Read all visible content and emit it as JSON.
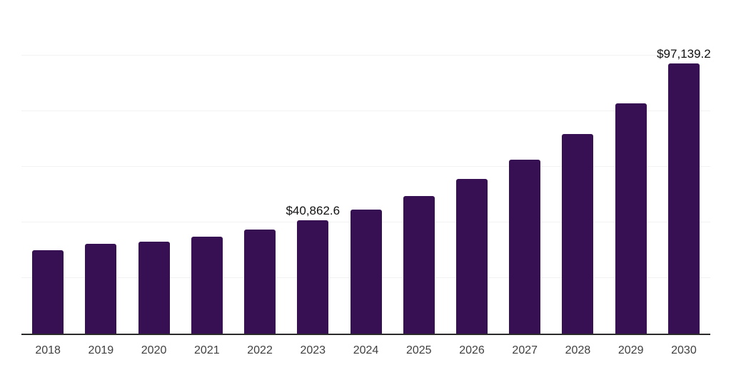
{
  "chart_data": {
    "type": "bar",
    "title": "",
    "xlabel": "",
    "ylabel": "",
    "categories": [
      "2018",
      "2019",
      "2020",
      "2021",
      "2022",
      "2023",
      "2024",
      "2025",
      "2026",
      "2027",
      "2028",
      "2029",
      "2030"
    ],
    "values": [
      30130,
      32430,
      33200,
      35000,
      37550,
      40862.6,
      44690,
      49400,
      55540,
      62560,
      71750,
      82730,
      97139.2
    ],
    "data_labels": [
      "",
      "",
      "",
      "",
      "",
      "$40,862.6",
      "",
      "",
      "",
      "",
      "",
      "",
      "$97,139.2"
    ],
    "ylim": [
      0,
      120000
    ],
    "gridline_step": 20000,
    "grid": true,
    "legend_position": "none",
    "y_tick_labels_visible": false,
    "colors": {
      "bar": "#361052",
      "axis": "#2b2b2b",
      "gridline": "#f2f2f2",
      "data_label": "#111111",
      "tick_label": "#404040",
      "background": "#ffffff"
    }
  }
}
